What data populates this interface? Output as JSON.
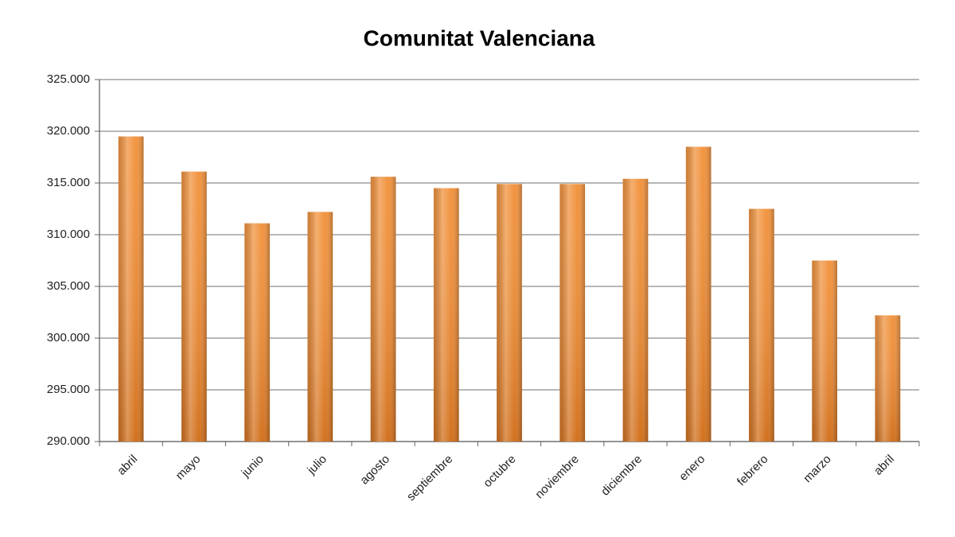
{
  "chart_data": {
    "type": "bar",
    "title": "Comunitat Valenciana",
    "categories": [
      "abril",
      "mayo",
      "junio",
      "julio",
      "agosto",
      "septiembre",
      "octubre",
      "noviembre",
      "diciembre",
      "enero",
      "febrero",
      "marzo",
      "abril"
    ],
    "values": [
      319500,
      316100,
      311100,
      312200,
      315600,
      314500,
      314900,
      314900,
      315400,
      318500,
      312500,
      307500,
      302200
    ],
    "color": "#f0882a",
    "ylim": [
      290000,
      325000
    ],
    "yticks": [
      {
        "value": 290000,
        "label": "290.000"
      },
      {
        "value": 295000,
        "label": "295.000"
      },
      {
        "value": 300000,
        "label": "300.000"
      },
      {
        "value": 305000,
        "label": "305.000"
      },
      {
        "value": 310000,
        "label": "310.000"
      },
      {
        "value": 315000,
        "label": "315.000"
      },
      {
        "value": 320000,
        "label": "320.000"
      },
      {
        "value": 325000,
        "label": "325.000"
      }
    ],
    "grid": true
  }
}
